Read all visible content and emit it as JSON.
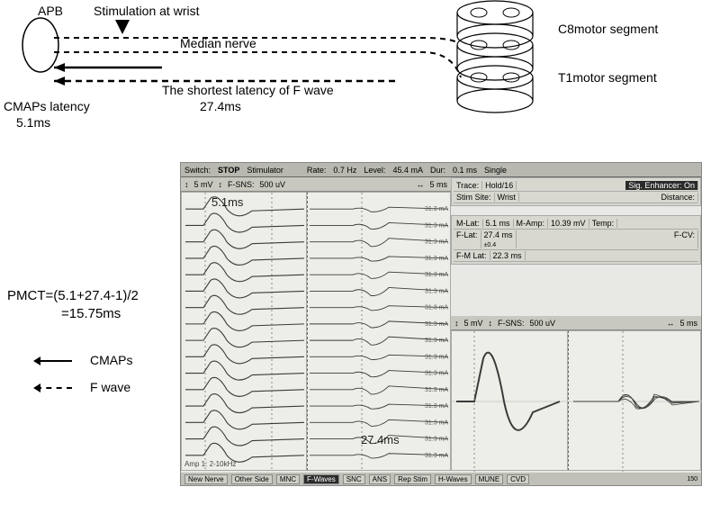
{
  "diagram": {
    "apb_label": "APB",
    "stim_label": "Stimulation at wrist",
    "nerve_label": "Median nerve",
    "f_wave_label": "The shortest latency of F wave",
    "f_wave_value": "27.4ms",
    "cmaps_label": "CMAPs latency",
    "cmaps_value": "5.1ms",
    "c8_label": "C8motor segment",
    "t1_label": "T1motor segment"
  },
  "formula": {
    "line1": "PMCT=(5.1+27.4-1)/2",
    "line2": "=15.75ms"
  },
  "legend": {
    "cmaps": "CMAPs",
    "fwave": "F wave"
  },
  "screenshot": {
    "topbar": {
      "switch": "Switch:",
      "stop": "STOP",
      "stimulator": "Stimulator",
      "rate_label": "Rate:",
      "rate_value": "0.7 Hz",
      "level_label": "Level:",
      "level_value": "45.4 mA",
      "dur_label": "Dur:",
      "dur_value": "0.1 ms",
      "mode": "Single"
    },
    "leftbar": {
      "scale_v": "5 mV",
      "fsns": "F-SNS:",
      "fsns_val": "500 uV",
      "scale_t": "5 ms"
    },
    "info": {
      "trace_label": "Trace:",
      "trace_value": "Hold/16",
      "enhancer_label": "Sig. Enhancer:",
      "enhancer_value": "On",
      "site_label": "Stim Site:",
      "site_value": "Wrist",
      "distance_label": "Distance:",
      "mlat_label": "M-Lat:",
      "mlat_value": "5.1 ms",
      "mamp_label": "M-Amp:",
      "mamp_value": "10.39 mV",
      "temp_label": "Temp:",
      "flat_label": "F-Lat:",
      "flat_value": "27.4 ms",
      "flat_sd": "±0.4",
      "fmlat_label": "F-M Lat:",
      "fmlat_value": "22.3 ms",
      "fcv_label": "F-CV:"
    },
    "trace_current": "31.3 mA",
    "overlay_left": "5.1ms",
    "overlay_right": "27.4ms",
    "amp_label": "Amp 1: 2-10kHz",
    "rightbar": {
      "scale_v": "5 mV",
      "fsns": "F-SNS:",
      "fsns_val": "500 uV",
      "scale_t": "5 ms"
    },
    "tabs": [
      "New Nerve",
      "Other Side",
      "MNC",
      "F-Waves",
      "SNC",
      "ANS",
      "Rep Stim",
      "H-Waves",
      "MUNE",
      "CVD"
    ],
    "num_traces": 16
  },
  "style": {
    "bg": "#ffffff",
    "text": "#000000",
    "screenshot_bg": "#e8e8e4",
    "panel_bg": "#eeeee8",
    "bar_bg": "#b8b8b0",
    "info_bg": "#d8d8d0",
    "dark_badge": "#2b2b2b",
    "wave_stroke": "#3a3a3a",
    "grid_stroke": "#cccccc"
  }
}
